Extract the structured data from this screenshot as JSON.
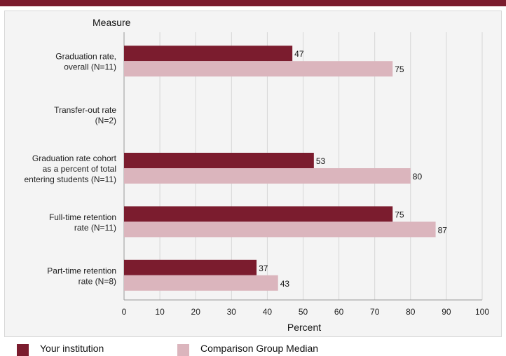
{
  "chart_data": {
    "type": "bar",
    "orientation": "horizontal",
    "ylabel": "Measure",
    "xlabel": "Percent",
    "xlim": [
      0,
      100
    ],
    "xticks": [
      "0",
      "10",
      "20",
      "30",
      "40",
      "50",
      "60",
      "70",
      "80",
      "90",
      "100"
    ],
    "grid": true,
    "legend_position": "bottom",
    "categories": [
      [
        "Graduation rate,",
        "overall (N=11)"
      ],
      [
        "Transfer-out rate",
        "(N=2)"
      ],
      [
        "Graduation rate cohort",
        "as a percent of total",
        "entering students (N=11)"
      ],
      [
        "Full-time retention",
        "rate (N=11)"
      ],
      [
        "Part-time retention",
        "rate (N=8)"
      ]
    ],
    "series": [
      {
        "name": "Your institution",
        "color": "#7b1c2e",
        "values": [
          47,
          null,
          53,
          75,
          37
        ]
      },
      {
        "name": "Comparison Group Median",
        "color": "#dbb5bd",
        "values": [
          75,
          null,
          80,
          87,
          43
        ]
      }
    ]
  },
  "colors": {
    "accent": "#7b1c2e",
    "panel": "#f4f4f4",
    "grid": "#d6d6d6"
  }
}
